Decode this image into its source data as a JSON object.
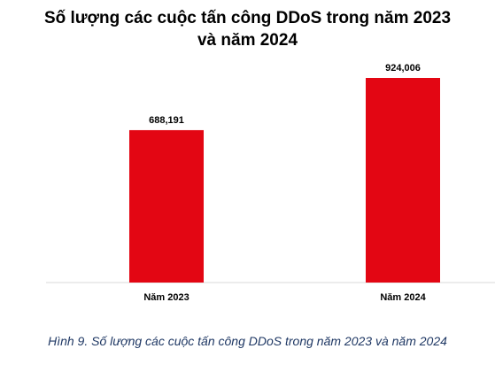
{
  "chart_data": {
    "type": "bar",
    "title_lines": [
      "Số lượng các cuộc tấn công DDoS trong năm 2023",
      "và năm 2024"
    ],
    "categories": [
      "Năm 2023",
      "Năm 2024"
    ],
    "values": [
      688191,
      924006
    ],
    "value_labels": [
      "688,191",
      "924,006"
    ],
    "bar_color": "#e30613",
    "ylim": [
      0,
      1000000
    ],
    "grid": false
  },
  "caption": "Hình 9. Số lượng các cuộc tấn công DDoS trong năm 2023 và năm 2024"
}
